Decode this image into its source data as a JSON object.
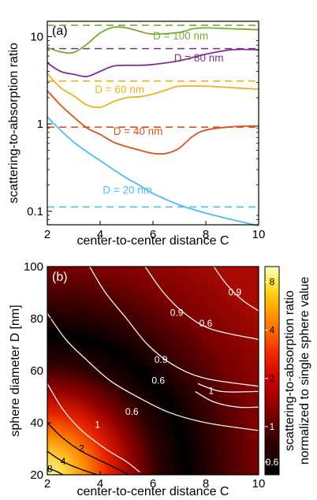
{
  "chart_data": [
    {
      "panel": "(a)",
      "type": "line",
      "ylabel": "scattering-to-absorption ratio",
      "xlabel": "center-to-center distance C",
      "xlim": [
        2,
        10
      ],
      "ylim": [
        0.07,
        15
      ],
      "yscale": "log",
      "x_ticks": [
        "2",
        "4",
        "6",
        "8",
        "10"
      ],
      "y_ticks": [
        {
          "v": 0.1,
          "label": "0.1"
        },
        {
          "v": 1,
          "label": "1"
        },
        {
          "v": 10,
          "label": "10"
        }
      ],
      "series": [
        {
          "label": "D = 100 nm",
          "color": "#77ac30",
          "reference": 13.5,
          "label_x": 6.0,
          "label_y": 9.3,
          "points": [
            [
              2,
              7.5
            ],
            [
              2.5,
              6.7
            ],
            [
              3,
              6.6
            ],
            [
              3.5,
              8.2
            ],
            [
              4,
              11
            ],
            [
              4.5,
              12.8
            ],
            [
              5,
              12.6
            ],
            [
              5.5,
              11.5
            ],
            [
              6,
              10.7
            ],
            [
              7,
              11.2
            ],
            [
              7.5,
              12.3
            ],
            [
              8,
              12.6
            ],
            [
              9,
              12.3
            ],
            [
              10,
              12.0
            ]
          ]
        },
        {
          "label": "D = 80 nm",
          "color": "#7e2f8e",
          "reference": 7.3,
          "label_x": 6.8,
          "label_y": 5.2,
          "points": [
            [
              2,
              5.0
            ],
            [
              2.5,
              4.0
            ],
            [
              3,
              3.7
            ],
            [
              3.5,
              3.5
            ],
            [
              4,
              4.0
            ],
            [
              4.5,
              4.6
            ],
            [
              5,
              4.7
            ],
            [
              5.5,
              4.7
            ],
            [
              6,
              4.8
            ],
            [
              7,
              5.3
            ],
            [
              8,
              6.3
            ],
            [
              9,
              7.1
            ],
            [
              10,
              7.1
            ]
          ]
        },
        {
          "label": "D = 60 nm",
          "color": "#edb120",
          "reference": 3.1,
          "label_x": 3.8,
          "label_y": 2.25,
          "points": [
            [
              2,
              3.8
            ],
            [
              2.5,
              2.6
            ],
            [
              3,
              2.1
            ],
            [
              3.5,
              1.65
            ],
            [
              4,
              1.55
            ],
            [
              4.5,
              1.8
            ],
            [
              5,
              2.0
            ],
            [
              5.5,
              2.05
            ],
            [
              6,
              2.2
            ],
            [
              6.5,
              2.45
            ],
            [
              7,
              2.7
            ],
            [
              8,
              2.7
            ],
            [
              9,
              2.6
            ],
            [
              10,
              2.5
            ]
          ]
        },
        {
          "label": "D = 40 nm",
          "color": "#d95319",
          "reference": 0.92,
          "label_x": 4.5,
          "label_y": 0.75,
          "points": [
            [
              2,
              2.4
            ],
            [
              2.5,
              1.65
            ],
            [
              3,
              1.2
            ],
            [
              3.5,
              0.9
            ],
            [
              4,
              0.76
            ],
            [
              4.5,
              0.62
            ],
            [
              5,
              0.55
            ],
            [
              5.5,
              0.5
            ],
            [
              6,
              0.46
            ],
            [
              6.5,
              0.46
            ],
            [
              7,
              0.53
            ],
            [
              7.5,
              0.72
            ],
            [
              8,
              0.85
            ],
            [
              9,
              0.93
            ],
            [
              10,
              0.95
            ]
          ]
        },
        {
          "label": "D = 20 nm",
          "color": "#4dbeee",
          "reference": 0.112,
          "label_x": 4.1,
          "label_y": 0.16,
          "points": [
            [
              2,
              1.2
            ],
            [
              2.5,
              0.85
            ],
            [
              3,
              0.62
            ],
            [
              3.5,
              0.48
            ],
            [
              4,
              0.38
            ],
            [
              4.5,
              0.3
            ],
            [
              5,
              0.24
            ],
            [
              5.5,
              0.197
            ],
            [
              6,
              0.16
            ],
            [
              7,
              0.118
            ],
            [
              8,
              0.095
            ],
            [
              9,
              0.08
            ],
            [
              10,
              0.068
            ]
          ]
        }
      ]
    },
    {
      "panel": "(b)",
      "type": "heatmap",
      "ylabel": "sphere diameter D [nm]",
      "xlabel": "center-to-center distance C",
      "xlim": [
        2,
        10
      ],
      "ylim": [
        20,
        100
      ],
      "x_ticks": [
        "2",
        "4",
        "6",
        "8",
        "10"
      ],
      "y_ticks": [
        "20",
        "40",
        "60",
        "80",
        "100"
      ],
      "colorbar": {
        "label_line1": "scattering-to-absorption ratio",
        "label_line2": "normalized to single sphere value",
        "scale": "log",
        "range": [
          0.5,
          10
        ],
        "ticks": [
          {
            "v": 0.6,
            "label": "0.6"
          },
          {
            "v": 1,
            "label": "1"
          },
          {
            "v": 2,
            "label": "2"
          },
          {
            "v": 4,
            "label": "4"
          },
          {
            "v": 8,
            "label": "8"
          }
        ]
      },
      "contour_labels": [
        {
          "text": "0.9",
          "x": 9.1,
          "y": 89,
          "color": "white"
        },
        {
          "text": "0.9",
          "x": 6.9,
          "y": 81,
          "color": "white"
        },
        {
          "text": "0.9",
          "x": 6.3,
          "y": 63,
          "color": "white"
        },
        {
          "text": "0.6",
          "x": 8.0,
          "y": 77,
          "color": "white"
        },
        {
          "text": "0.6",
          "x": 6.2,
          "y": 55,
          "color": "white"
        },
        {
          "text": "0.6",
          "x": 5.2,
          "y": 43,
          "color": "white"
        },
        {
          "text": "1",
          "x": 8.2,
          "y": 51,
          "color": "white"
        },
        {
          "text": "1",
          "x": 3.9,
          "y": 38,
          "color": "white"
        },
        {
          "text": "2",
          "x": 3.3,
          "y": 29,
          "color": "black"
        },
        {
          "text": "4",
          "x": 2.6,
          "y": 24,
          "color": "black"
        },
        {
          "text": "8",
          "x": 2.1,
          "y": 21,
          "color": "black"
        }
      ]
    }
  ]
}
